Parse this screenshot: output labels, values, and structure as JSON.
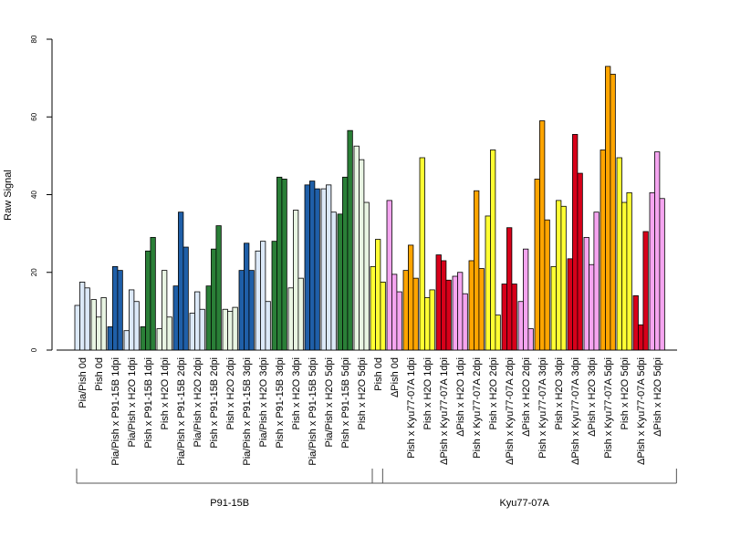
{
  "chart_data": {
    "type": "bar",
    "ylabel": "Raw Signal",
    "xlabel": "",
    "ylim": [
      0,
      80
    ],
    "yticks": [
      "0",
      "20",
      "40",
      "60",
      "80"
    ],
    "grid": false,
    "legend": "none",
    "groups": [
      {
        "name": "P91-15B",
        "categories": [
          {
            "label": "Pia/Pish 0d",
            "color": "#dce9f8",
            "values": [
              11.5,
              17.5,
              16
            ]
          },
          {
            "label": "Pish 0d",
            "color": "#e9f5e3",
            "values": [
              13,
              8.5,
              13.5
            ]
          },
          {
            "label": "Pia/Pish x P91-15B 1dpi",
            "color": "#1f5fa8",
            "values": [
              6,
              21.5,
              20.5
            ]
          },
          {
            "label": "Pia/Pish x H2O 1dpi",
            "color": "#dce9f8",
            "values": [
              5,
              15.5,
              12.5
            ]
          },
          {
            "label": "Pish x P91-15B 1dpi",
            "color": "#2a7f37",
            "values": [
              6,
              25.5,
              29
            ]
          },
          {
            "label": "Pish x H2O 1dpi",
            "color": "#e9f5e3",
            "values": [
              5.5,
              20.5,
              8.5
            ]
          },
          {
            "label": "Pia/Pish x P91-15B 2dpi",
            "color": "#1f5fa8",
            "values": [
              16.5,
              35.5,
              26.5
            ]
          },
          {
            "label": "Pia/Pish x H2O 2dpi",
            "color": "#dce9f8",
            "values": [
              9.5,
              15,
              10.5
            ]
          },
          {
            "label": "Pish x P91-15B 2dpi",
            "color": "#2a7f37",
            "values": [
              16.5,
              26,
              32
            ]
          },
          {
            "label": "Pish x H2O 2dpi",
            "color": "#e9f5e3",
            "values": [
              10.5,
              10,
              11
            ]
          },
          {
            "label": "Pia/Pish x P91-15B 3dpi",
            "color": "#1f5fa8",
            "values": [
              20.5,
              27.5,
              20.5
            ]
          },
          {
            "label": "Pia/Pish x H2O 3dpi",
            "color": "#dce9f8",
            "values": [
              25.5,
              28,
              12.5
            ]
          },
          {
            "label": "Pish x P91-15B 3dpi",
            "color": "#2a7f37",
            "values": [
              28,
              44.5,
              44
            ]
          },
          {
            "label": "Pish x H2O 3dpi",
            "color": "#e9f5e3",
            "values": [
              16,
              36,
              18.5
            ]
          },
          {
            "label": "Pia/Pish x P91-15B 5dpi",
            "color": "#1f5fa8",
            "values": [
              42.5,
              43.5,
              41.5
            ]
          },
          {
            "label": "Pia/Pish x H2O 5dpi",
            "color": "#dce9f8",
            "values": [
              41.5,
              42.5,
              35.5
            ]
          },
          {
            "label": "Pish x P91-15B 5dpi",
            "color": "#2a7f37",
            "values": [
              35,
              44.5,
              56.5
            ]
          },
          {
            "label": "Pish x H2O 5dpi",
            "color": "#e9f5e3",
            "values": [
              52.5,
              49,
              38
            ]
          }
        ]
      },
      {
        "name": "Kyu77-07A",
        "categories": [
          {
            "label": "Pish 0d",
            "color": "#ffff33",
            "values": [
              21.5,
              28.5,
              17.5
            ]
          },
          {
            "label": "ΔPish 0d",
            "color": "#f5a5f0",
            "values": [
              38.5,
              19.5,
              15
            ]
          },
          {
            "label": "Pish x Kyu77-07A 1dpi",
            "color": "#ffa500",
            "values": [
              20.5,
              27,
              18.5
            ]
          },
          {
            "label": "Pish x H2O 1dpi",
            "color": "#ffff33",
            "values": [
              49.5,
              13.5,
              15.5
            ]
          },
          {
            "label": "ΔPish x Kyu77-07A 1dpi",
            "color": "#d7001a",
            "values": [
              24.5,
              23,
              18
            ]
          },
          {
            "label": "ΔPish x H2O 1dpi",
            "color": "#f5a5f0",
            "values": [
              19,
              20,
              14.5
            ]
          },
          {
            "label": "Pish x Kyu77-07A 2dpi",
            "color": "#ffa500",
            "values": [
              23,
              41,
              21
            ]
          },
          {
            "label": "Pish x H2O 2dpi",
            "color": "#ffff33",
            "values": [
              34.5,
              51.5,
              9
            ]
          },
          {
            "label": "ΔPish x Kyu77-07A 2dpi",
            "color": "#d7001a",
            "values": [
              17,
              31.5,
              17
            ]
          },
          {
            "label": "ΔPish x H2O 2dpi",
            "color": "#f5a5f0",
            "values": [
              12.5,
              26,
              5.5
            ]
          },
          {
            "label": "Pish x Kyu77-07A 3dpi",
            "color": "#ffa500",
            "values": [
              44,
              59,
              33.5
            ]
          },
          {
            "label": "Pish x H2O 3dpi",
            "color": "#ffff33",
            "values": [
              21.5,
              38.5,
              37
            ]
          },
          {
            "label": "ΔPish x Kyu77-07A 3dpi",
            "color": "#d7001a",
            "values": [
              23.5,
              55.5,
              45.5
            ]
          },
          {
            "label": "ΔPish x H2O 3dpi",
            "color": "#f5a5f0",
            "values": [
              29,
              22,
              35.5
            ]
          },
          {
            "label": "Pish x Kyu77-07A 5dpi",
            "color": "#ffa500",
            "values": [
              51.5,
              73,
              71
            ]
          },
          {
            "label": "Pish x H2O 5dpi",
            "color": "#ffff33",
            "values": [
              49.5,
              38,
              40.5
            ]
          },
          {
            "label": "ΔPish x Kyu77-07A 5dpi",
            "color": "#d7001a",
            "values": [
              14,
              6.5,
              30.5
            ]
          },
          {
            "label": "ΔPish x H2O 5dpi",
            "color": "#f5a5f0",
            "values": [
              40.5,
              51,
              39
            ]
          }
        ]
      }
    ]
  }
}
